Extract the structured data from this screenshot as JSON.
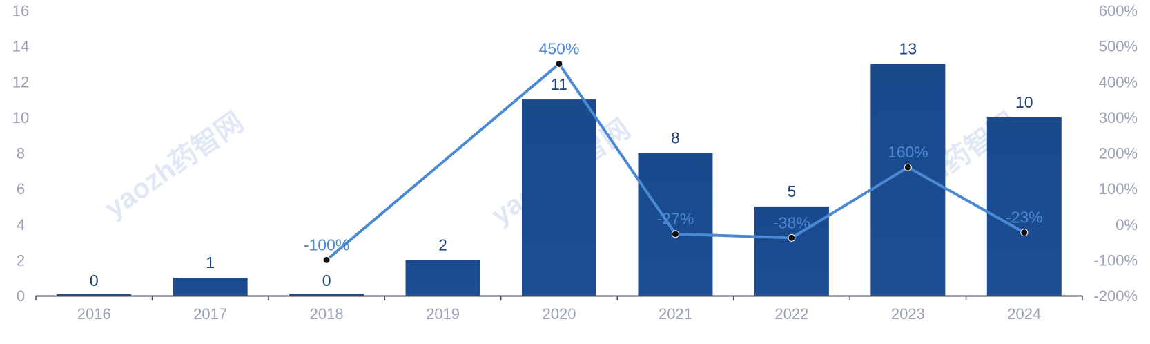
{
  "chart_data": {
    "type": "bar",
    "categories": [
      "2016",
      "2017",
      "2018",
      "2019",
      "2020",
      "2021",
      "2022",
      "2023",
      "2024"
    ],
    "series": [
      {
        "type": "bar",
        "values": [
          0,
          1,
          0,
          2,
          11,
          8,
          5,
          13,
          10
        ],
        "labels": [
          "0",
          "1",
          "0",
          "2",
          "11",
          "8",
          "5",
          "13",
          "10"
        ]
      },
      {
        "type": "line",
        "axis": "right",
        "points": [
          {
            "category": "2018",
            "value": -100,
            "label": "-100%"
          },
          {
            "category": "2020",
            "value": 450,
            "label": "450%"
          },
          {
            "category": "2021",
            "value": -27,
            "label": "-27%"
          },
          {
            "category": "2022",
            "value": -38,
            "label": "-38%"
          },
          {
            "category": "2023",
            "value": 160,
            "label": "160%"
          },
          {
            "category": "2024",
            "value": -23,
            "label": "-23%"
          }
        ]
      }
    ],
    "ylim": [
      0,
      16
    ],
    "y_ticks": [
      "0",
      "2",
      "4",
      "6",
      "8",
      "10",
      "12",
      "14",
      "16"
    ],
    "y2lim": [
      -200,
      600
    ],
    "y2_ticks": [
      "-200%",
      "-100%",
      "0%",
      "100%",
      "200%",
      "300%",
      "400%",
      "500%",
      "600%"
    ],
    "watermark": "yaozh药智网",
    "grid": false,
    "legend": "none"
  },
  "colors": {
    "bar": "#1b4a8e",
    "bar_dark": "#123c7c",
    "line": "#4a8ad4",
    "marker": "#111111",
    "axis": "#4a4f5c",
    "tick_text": "#9aa0b4",
    "bar_label": "#1a3f7a",
    "line_label": "#4a8ad4"
  }
}
